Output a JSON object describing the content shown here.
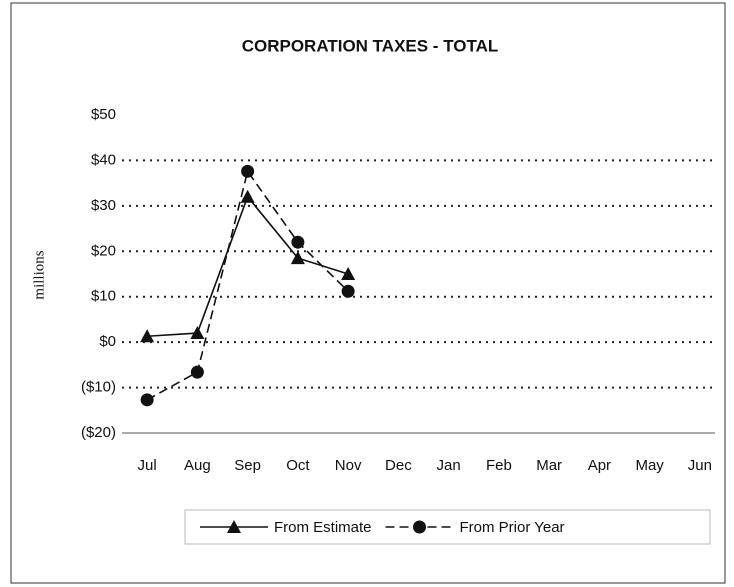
{
  "chart_data": {
    "type": "line",
    "title": "CORPORATION TAXES - TOTAL",
    "y_label": "millions",
    "categories": [
      "Jul",
      "Aug",
      "Sep",
      "Oct",
      "Nov",
      "Dec",
      "Jan",
      "Feb",
      "Mar",
      "Apr",
      "May",
      "Jun"
    ],
    "series": [
      {
        "name": "From Estimate",
        "color": "#111111",
        "dash": "solid",
        "marker": "triangle",
        "values": [
          1.3,
          2,
          32,
          18.5,
          15,
          null,
          null,
          null,
          null,
          null,
          null,
          null
        ]
      },
      {
        "name": "From Prior Year",
        "color": "#111111",
        "dash": "dashed",
        "marker": "circle",
        "values": [
          -12.7,
          -6.6,
          37.6,
          22,
          11.2,
          null,
          null,
          null,
          null,
          null,
          null,
          null
        ]
      }
    ],
    "ylim": [
      -20,
      50
    ],
    "yticks": [
      {
        "value": -20,
        "label": "($20)"
      },
      {
        "value": -10,
        "label": "($10)"
      },
      {
        "value": 0,
        "label": "$0"
      },
      {
        "value": 10,
        "label": "$10"
      },
      {
        "value": 20,
        "label": "$20"
      },
      {
        "value": 30,
        "label": "$30"
      },
      {
        "value": 40,
        "label": "$40"
      },
      {
        "value": 50,
        "label": "$50"
      }
    ],
    "grid": true,
    "legend": "bottom"
  }
}
